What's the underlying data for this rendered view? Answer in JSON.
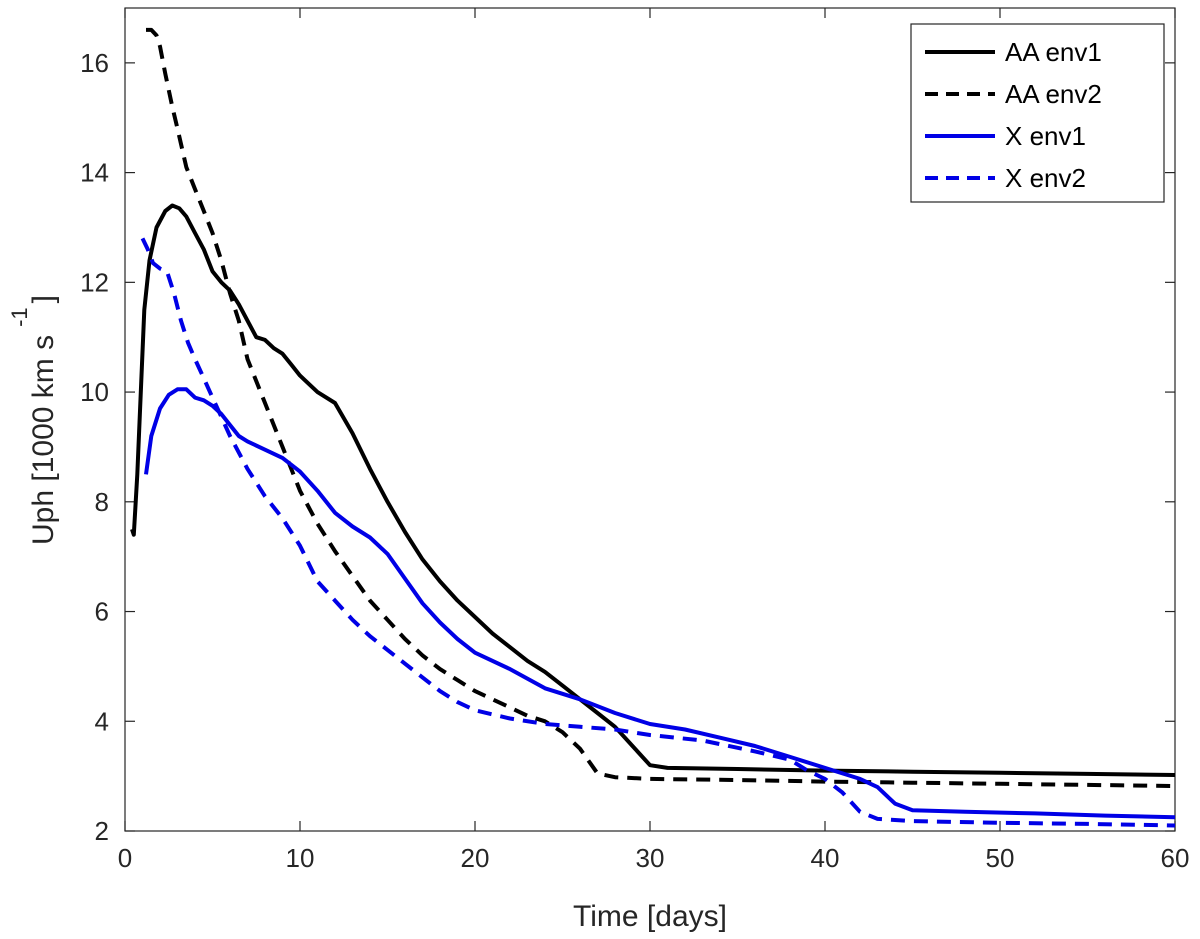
{
  "chart_data": {
    "type": "line",
    "title": "",
    "xlabel": "Time [days]",
    "ylabel": "Uph [1000 km s",
    "ylabel_superscript": "-1",
    "ylabel_close": "]",
    "xlim": [
      0,
      60
    ],
    "ylim": [
      2,
      17
    ],
    "xticks": [
      0,
      10,
      20,
      30,
      40,
      50,
      60
    ],
    "yticks": [
      2,
      4,
      6,
      8,
      10,
      12,
      14,
      16
    ],
    "grid": false,
    "legend_position": "top-right",
    "series": [
      {
        "name": "AA env1",
        "color": "#000000",
        "dash": "solid",
        "points": [
          [
            0.4,
            7.5
          ],
          [
            0.5,
            7.4
          ],
          [
            0.7,
            8.5
          ],
          [
            0.9,
            10
          ],
          [
            1.1,
            11.5
          ],
          [
            1.4,
            12.4
          ],
          [
            1.8,
            13
          ],
          [
            2.3,
            13.3
          ],
          [
            2.7,
            13.4
          ],
          [
            3.1,
            13.35
          ],
          [
            3.5,
            13.2
          ],
          [
            4,
            12.9
          ],
          [
            4.5,
            12.6
          ],
          [
            5,
            12.2
          ],
          [
            5.5,
            12
          ],
          [
            6,
            11.85
          ],
          [
            6.5,
            11.6
          ],
          [
            7,
            11.3
          ],
          [
            7.5,
            11
          ],
          [
            8,
            10.95
          ],
          [
            8.5,
            10.8
          ],
          [
            9,
            10.7
          ],
          [
            9.5,
            10.5
          ],
          [
            10,
            10.3
          ],
          [
            11,
            10
          ],
          [
            12,
            9.8
          ],
          [
            13,
            9.25
          ],
          [
            14,
            8.6
          ],
          [
            15,
            8
          ],
          [
            16,
            7.45
          ],
          [
            17,
            6.95
          ],
          [
            18,
            6.55
          ],
          [
            19,
            6.2
          ],
          [
            20,
            5.9
          ],
          [
            21,
            5.6
          ],
          [
            22,
            5.35
          ],
          [
            23,
            5.1
          ],
          [
            24,
            4.9
          ],
          [
            25,
            4.65
          ],
          [
            26,
            4.4
          ],
          [
            27,
            4.15
          ],
          [
            28,
            3.9
          ],
          [
            29,
            3.55
          ],
          [
            30,
            3.2
          ],
          [
            31,
            3.15
          ],
          [
            35,
            3.13
          ],
          [
            40,
            3.1
          ],
          [
            45,
            3.08
          ],
          [
            50,
            3.06
          ],
          [
            55,
            3.04
          ],
          [
            60,
            3.02
          ]
        ]
      },
      {
        "name": "AA env2",
        "color": "#000000",
        "dash": "dashed",
        "points": [
          [
            1.2,
            16.6
          ],
          [
            1.5,
            16.6
          ],
          [
            1.8,
            16.5
          ],
          [
            2,
            16.3
          ],
          [
            2.3,
            15.8
          ],
          [
            2.7,
            15.2
          ],
          [
            3,
            14.8
          ],
          [
            3.5,
            14.1
          ],
          [
            4,
            13.7
          ],
          [
            4.5,
            13.3
          ],
          [
            5,
            12.9
          ],
          [
            5.5,
            12.4
          ],
          [
            6,
            11.8
          ],
          [
            6.5,
            11.3
          ],
          [
            7,
            10.6
          ],
          [
            8,
            9.8
          ],
          [
            9,
            9
          ],
          [
            10,
            8.2
          ],
          [
            11,
            7.6
          ],
          [
            12,
            7.1
          ],
          [
            13,
            6.65
          ],
          [
            14,
            6.2
          ],
          [
            15,
            5.85
          ],
          [
            16,
            5.5
          ],
          [
            17,
            5.2
          ],
          [
            18,
            4.95
          ],
          [
            19,
            4.75
          ],
          [
            20,
            4.55
          ],
          [
            21,
            4.4
          ],
          [
            22,
            4.25
          ],
          [
            23,
            4.1
          ],
          [
            24,
            4
          ],
          [
            25,
            3.8
          ],
          [
            26,
            3.5
          ],
          [
            27,
            3.05
          ],
          [
            28,
            2.98
          ],
          [
            30,
            2.95
          ],
          [
            35,
            2.93
          ],
          [
            40,
            2.9
          ],
          [
            45,
            2.88
          ],
          [
            50,
            2.86
          ],
          [
            55,
            2.84
          ],
          [
            60,
            2.82
          ]
        ]
      },
      {
        "name": "X env1",
        "color": "#0000e6",
        "dash": "solid",
        "points": [
          [
            1.2,
            8.5
          ],
          [
            1.5,
            9.2
          ],
          [
            2,
            9.7
          ],
          [
            2.5,
            9.95
          ],
          [
            3,
            10.05
          ],
          [
            3.5,
            10.05
          ],
          [
            4,
            9.9
          ],
          [
            4.5,
            9.85
          ],
          [
            5,
            9.75
          ],
          [
            5.5,
            9.6
          ],
          [
            6,
            9.4
          ],
          [
            6.5,
            9.2
          ],
          [
            7,
            9.1
          ],
          [
            8,
            8.95
          ],
          [
            9,
            8.8
          ],
          [
            10,
            8.55
          ],
          [
            11,
            8.2
          ],
          [
            12,
            7.8
          ],
          [
            13,
            7.55
          ],
          [
            14,
            7.35
          ],
          [
            15,
            7.05
          ],
          [
            16,
            6.6
          ],
          [
            17,
            6.15
          ],
          [
            18,
            5.8
          ],
          [
            19,
            5.5
          ],
          [
            20,
            5.25
          ],
          [
            22,
            4.95
          ],
          [
            24,
            4.6
          ],
          [
            26,
            4.4
          ],
          [
            28,
            4.15
          ],
          [
            30,
            3.95
          ],
          [
            32,
            3.85
          ],
          [
            34,
            3.7
          ],
          [
            36,
            3.55
          ],
          [
            38,
            3.35
          ],
          [
            40,
            3.15
          ],
          [
            41,
            3.05
          ],
          [
            42,
            2.95
          ],
          [
            43,
            2.8
          ],
          [
            44,
            2.5
          ],
          [
            45,
            2.38
          ],
          [
            48,
            2.35
          ],
          [
            52,
            2.32
          ],
          [
            56,
            2.28
          ],
          [
            60,
            2.25
          ]
        ]
      },
      {
        "name": "X env2",
        "color": "#0000e6",
        "dash": "dashed",
        "points": [
          [
            1,
            12.8
          ],
          [
            1.3,
            12.6
          ],
          [
            1.6,
            12.35
          ],
          [
            2,
            12.25
          ],
          [
            2.4,
            12.2
          ],
          [
            2.8,
            11.8
          ],
          [
            3.2,
            11.3
          ],
          [
            3.6,
            10.9
          ],
          [
            4,
            10.6
          ],
          [
            4.5,
            10.25
          ],
          [
            5,
            9.9
          ],
          [
            5.5,
            9.55
          ],
          [
            6,
            9.2
          ],
          [
            7,
            8.6
          ],
          [
            8,
            8.1
          ],
          [
            9,
            7.7
          ],
          [
            10,
            7.2
          ],
          [
            11,
            6.55
          ],
          [
            12,
            6.2
          ],
          [
            13,
            5.85
          ],
          [
            14,
            5.55
          ],
          [
            15,
            5.3
          ],
          [
            16,
            5.05
          ],
          [
            17,
            4.8
          ],
          [
            18,
            4.55
          ],
          [
            19,
            4.35
          ],
          [
            20,
            4.2
          ],
          [
            22,
            4.05
          ],
          [
            24,
            3.95
          ],
          [
            26,
            3.9
          ],
          [
            28,
            3.85
          ],
          [
            30,
            3.75
          ],
          [
            33,
            3.65
          ],
          [
            36,
            3.45
          ],
          [
            38,
            3.3
          ],
          [
            39,
            3.1
          ],
          [
            40,
            2.95
          ],
          [
            41,
            2.7
          ],
          [
            42,
            2.35
          ],
          [
            43,
            2.22
          ],
          [
            45,
            2.18
          ],
          [
            50,
            2.15
          ],
          [
            55,
            2.13
          ],
          [
            60,
            2.1
          ]
        ]
      }
    ]
  }
}
